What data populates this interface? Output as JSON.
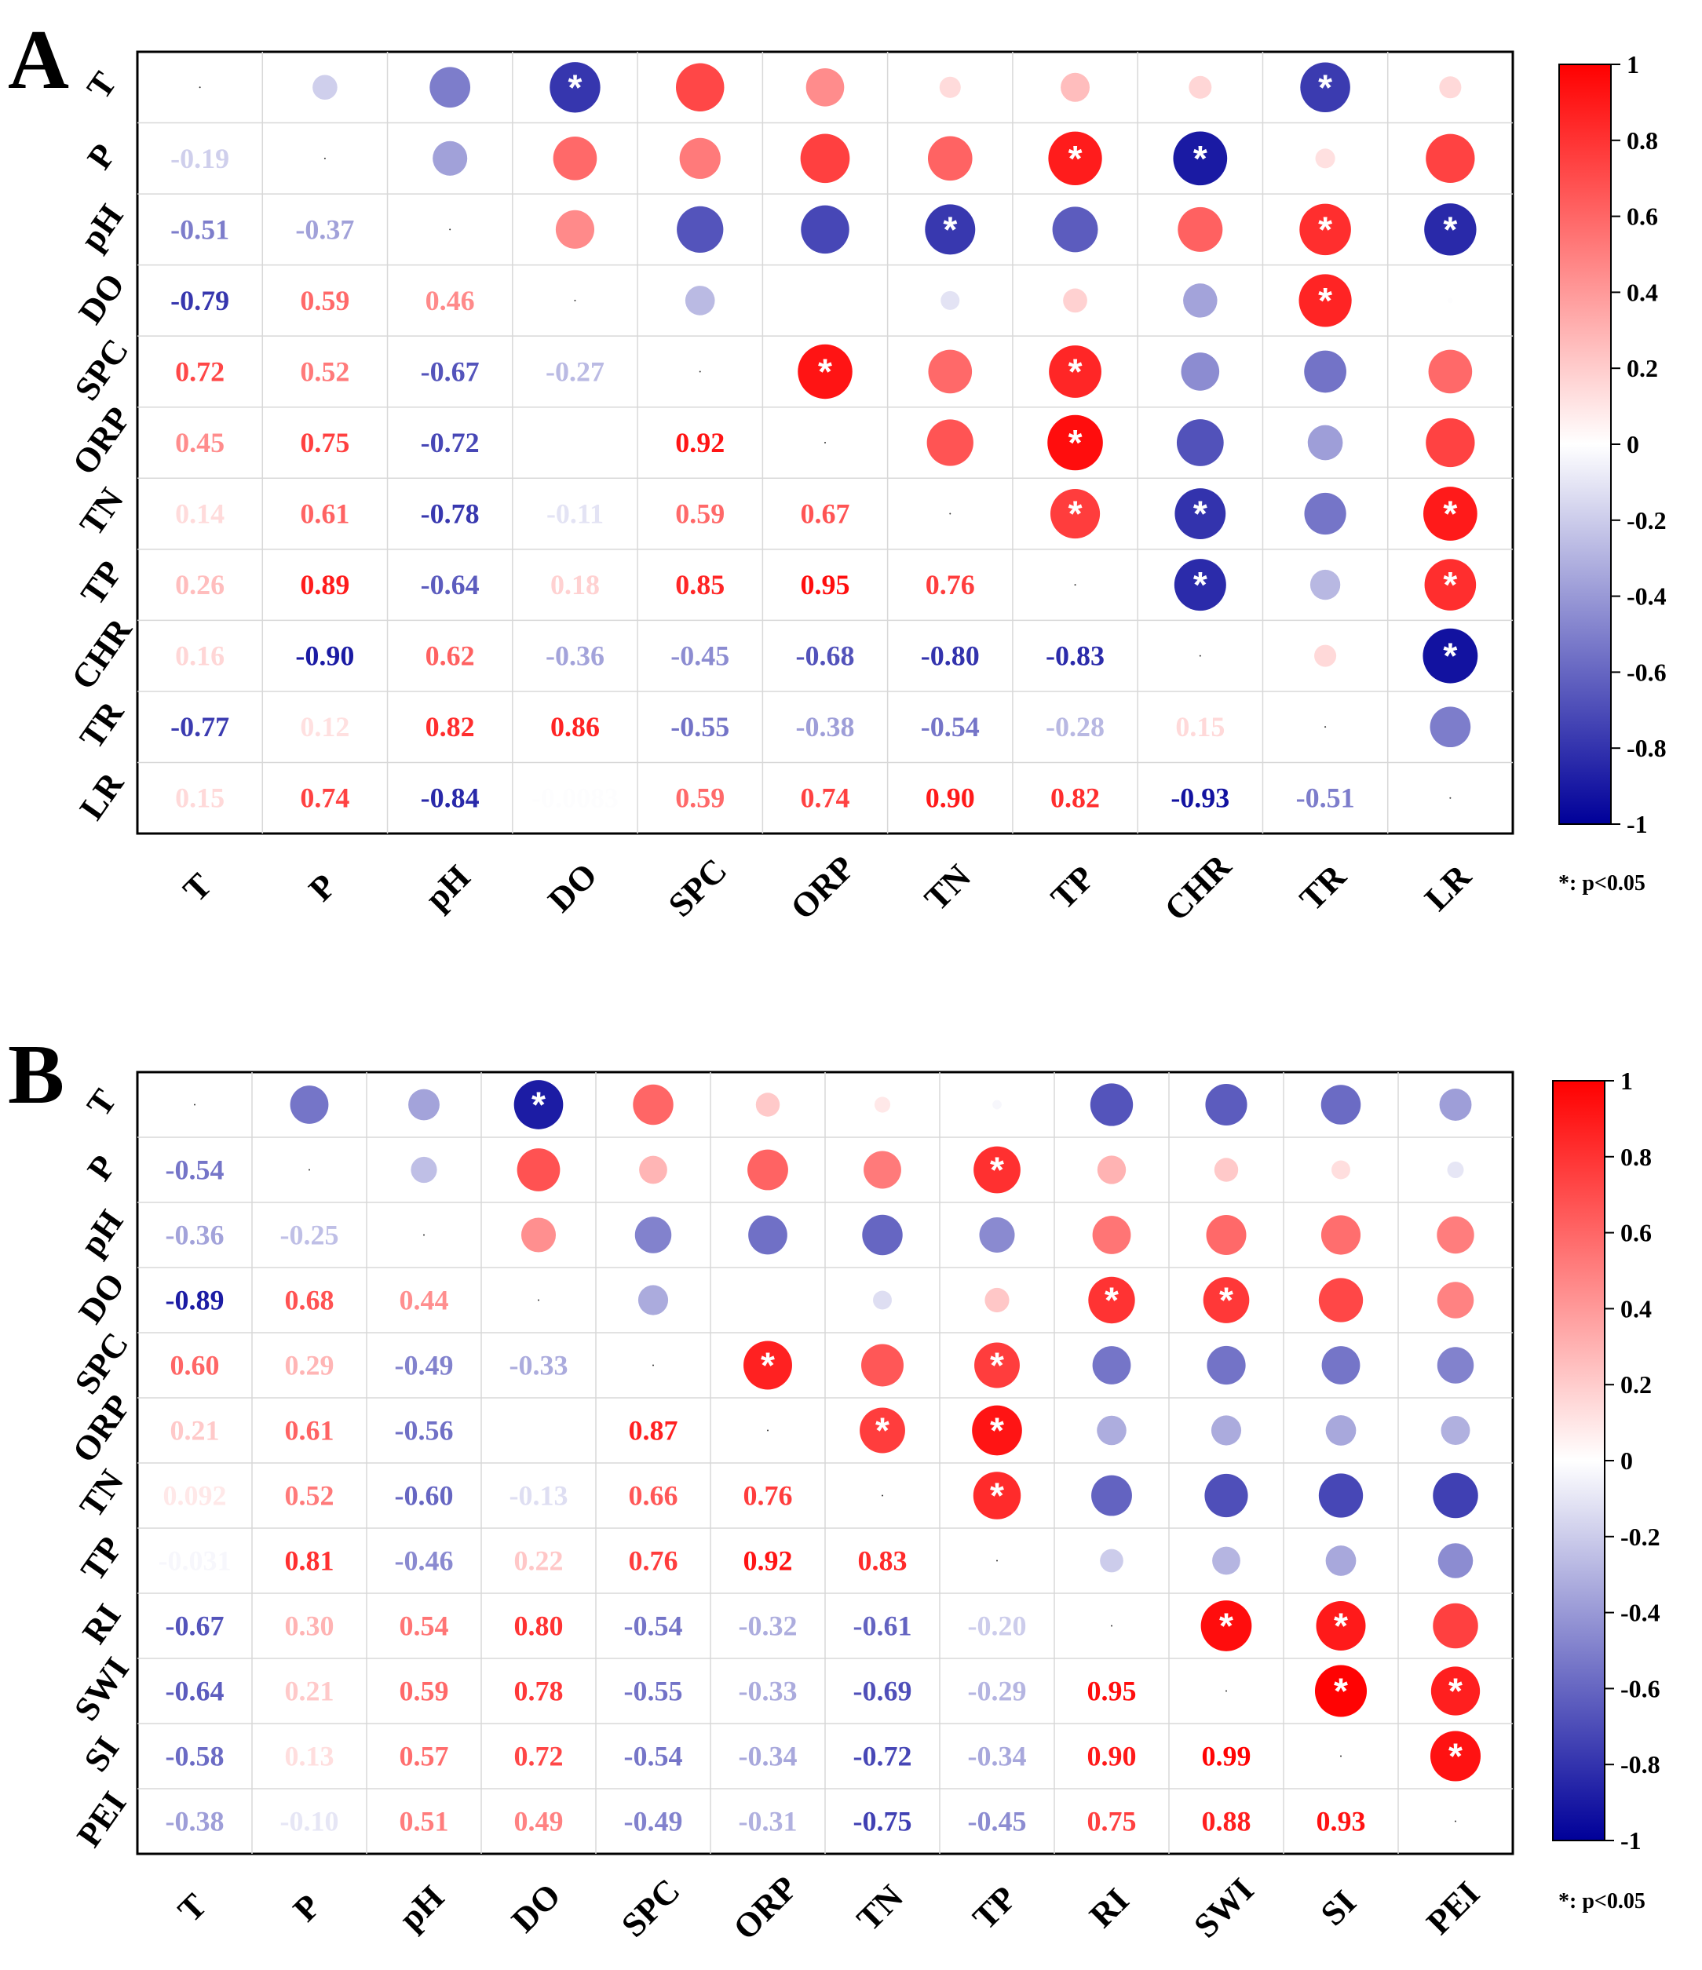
{
  "significance_note": "*:  p<0.05",
  "significance_marker": "*",
  "colorbar": {
    "ticks": [
      "1",
      "0.8",
      "0.6",
      "0.4",
      "0.2",
      "0",
      "-0.2",
      "-0.4",
      "-0.6",
      "-0.8",
      "-1"
    ],
    "colors": {
      "positive": "#ff0000",
      "neutral": "#ffffff",
      "negative": "#000099"
    }
  },
  "chart_data": [
    {
      "panel": "A",
      "type": "heatmap",
      "title": "A",
      "range": [
        -1,
        1
      ],
      "variables": [
        "T",
        "P",
        "pH",
        "DO",
        "SPC",
        "ORP",
        "TN",
        "TP",
        "CHR",
        "TR",
        "LR"
      ],
      "lower_triangle_labels": [
        [],
        [
          "-0.19"
        ],
        [
          "-0.51",
          "-0.37"
        ],
        [
          "-0.79",
          "0.59",
          "0.46"
        ],
        [
          "0.72",
          "0.52",
          "-0.67",
          "-0.27"
        ],
        [
          "0.45",
          "0.75",
          "-0.72",
          "",
          "0.92"
        ],
        [
          "0.14",
          "0.61",
          "-0.78",
          "-0.11",
          "0.59",
          "0.67"
        ],
        [
          "0.26",
          "0.89",
          "-0.64",
          "0.18",
          "0.85",
          "0.95",
          "0.76"
        ],
        [
          "0.16",
          "-0.90",
          "0.62",
          "-0.36",
          "-0.45",
          "-0.68",
          "-0.80",
          "-0.83"
        ],
        [
          "-0.77",
          "0.12",
          "0.82",
          "0.86",
          "-0.55",
          "-0.38",
          "-0.54",
          "-0.28",
          "0.15"
        ],
        [
          "0.15",
          "0.74",
          "-0.84",
          "-0.0083",
          "0.59",
          "0.74",
          "0.90",
          "0.82",
          "-0.93",
          "-0.51"
        ]
      ],
      "upper_triangle_values": [
        [
          null,
          -0.19,
          -0.51,
          -0.79,
          0.72,
          0.45,
          0.14,
          0.26,
          0.16,
          -0.77,
          0.15
        ],
        [
          null,
          null,
          -0.37,
          0.59,
          0.52,
          0.75,
          0.61,
          0.89,
          -0.9,
          0.12,
          0.74
        ],
        [
          null,
          null,
          null,
          0.46,
          -0.67,
          -0.72,
          -0.78,
          -0.64,
          0.62,
          0.82,
          -0.84
        ],
        [
          null,
          null,
          null,
          null,
          -0.27,
          0.0,
          -0.11,
          0.18,
          -0.36,
          0.86,
          -0.0083
        ],
        [
          null,
          null,
          null,
          null,
          null,
          0.92,
          0.59,
          0.85,
          -0.45,
          -0.55,
          0.59
        ],
        [
          null,
          null,
          null,
          null,
          null,
          null,
          0.67,
          0.95,
          -0.68,
          -0.38,
          0.74
        ],
        [
          null,
          null,
          null,
          null,
          null,
          null,
          null,
          0.76,
          -0.8,
          -0.54,
          0.9
        ],
        [
          null,
          null,
          null,
          null,
          null,
          null,
          null,
          null,
          -0.83,
          -0.28,
          0.82
        ],
        [
          null,
          null,
          null,
          null,
          null,
          null,
          null,
          null,
          null,
          0.15,
          -0.93
        ],
        [
          null,
          null,
          null,
          null,
          null,
          null,
          null,
          null,
          null,
          null,
          -0.51
        ],
        [
          null,
          null,
          null,
          null,
          null,
          null,
          null,
          null,
          null,
          null,
          null
        ]
      ],
      "significant_cells": [
        [
          0,
          3
        ],
        [
          0,
          9
        ],
        [
          1,
          7
        ],
        [
          1,
          8
        ],
        [
          2,
          6
        ],
        [
          2,
          9
        ],
        [
          2,
          10
        ],
        [
          3,
          9
        ],
        [
          4,
          5
        ],
        [
          4,
          7
        ],
        [
          5,
          7
        ],
        [
          6,
          7
        ],
        [
          6,
          8
        ],
        [
          6,
          10
        ],
        [
          7,
          8
        ],
        [
          7,
          10
        ],
        [
          8,
          10
        ]
      ]
    },
    {
      "panel": "B",
      "type": "heatmap",
      "title": "B",
      "range": [
        -1,
        1
      ],
      "variables": [
        "T",
        "P",
        "pH",
        "DO",
        "SPC",
        "ORP",
        "TN",
        "TP",
        "RI",
        "SWI",
        "SI",
        "PEI"
      ],
      "lower_triangle_labels": [
        [],
        [
          "-0.54"
        ],
        [
          "-0.36",
          "-0.25"
        ],
        [
          "-0.89",
          "0.68",
          "0.44"
        ],
        [
          "0.60",
          "0.29",
          "-0.49",
          "-0.33"
        ],
        [
          "0.21",
          "0.61",
          "-0.56",
          "",
          "0.87"
        ],
        [
          "0.092",
          "0.52",
          "-0.60",
          "-0.13",
          "0.66",
          "0.76"
        ],
        [
          "-0.031",
          "0.81",
          "-0.46",
          "0.22",
          "0.76",
          "0.92",
          "0.83"
        ],
        [
          "-0.67",
          "0.30",
          "0.54",
          "0.80",
          "-0.54",
          "-0.32",
          "-0.61",
          "-0.20"
        ],
        [
          "-0.64",
          "0.21",
          "0.59",
          "0.78",
          "-0.55",
          "-0.33",
          "-0.69",
          "-0.29",
          "0.95"
        ],
        [
          "-0.58",
          "0.13",
          "0.57",
          "0.72",
          "-0.54",
          "-0.34",
          "-0.72",
          "-0.34",
          "0.90",
          "0.99"
        ],
        [
          "-0.38",
          "-0.10",
          "0.51",
          "0.49",
          "-0.49",
          "-0.31",
          "-0.75",
          "-0.45",
          "0.75",
          "0.88",
          "0.93"
        ]
      ],
      "upper_triangle_values": [
        [
          null,
          -0.54,
          -0.36,
          -0.89,
          0.6,
          0.21,
          0.092,
          -0.031,
          -0.67,
          -0.64,
          -0.58,
          -0.38
        ],
        [
          null,
          null,
          -0.25,
          0.68,
          0.29,
          0.61,
          0.52,
          0.81,
          0.3,
          0.21,
          0.13,
          -0.1
        ],
        [
          null,
          null,
          null,
          0.44,
          -0.49,
          -0.56,
          -0.6,
          -0.46,
          0.54,
          0.59,
          0.57,
          0.51
        ],
        [
          null,
          null,
          null,
          null,
          -0.33,
          0.0,
          -0.13,
          0.22,
          0.8,
          0.78,
          0.72,
          0.49
        ],
        [
          null,
          null,
          null,
          null,
          null,
          0.87,
          0.66,
          0.76,
          -0.54,
          -0.55,
          -0.54,
          -0.49
        ],
        [
          null,
          null,
          null,
          null,
          null,
          null,
          0.76,
          0.92,
          -0.32,
          -0.33,
          -0.34,
          -0.31
        ],
        [
          null,
          null,
          null,
          null,
          null,
          null,
          null,
          0.83,
          -0.61,
          -0.69,
          -0.72,
          -0.75
        ],
        [
          null,
          null,
          null,
          null,
          null,
          null,
          null,
          null,
          -0.2,
          -0.29,
          -0.34,
          -0.45
        ],
        [
          null,
          null,
          null,
          null,
          null,
          null,
          null,
          null,
          null,
          0.95,
          0.9,
          0.75
        ],
        [
          null,
          null,
          null,
          null,
          null,
          null,
          null,
          null,
          null,
          null,
          0.99,
          0.88
        ],
        [
          null,
          null,
          null,
          null,
          null,
          null,
          null,
          null,
          null,
          null,
          null,
          0.93
        ],
        [
          null,
          null,
          null,
          null,
          null,
          null,
          null,
          null,
          null,
          null,
          null,
          null
        ]
      ],
      "significant_cells": [
        [
          0,
          3
        ],
        [
          1,
          7
        ],
        [
          3,
          8
        ],
        [
          3,
          9
        ],
        [
          4,
          5
        ],
        [
          4,
          7
        ],
        [
          5,
          6
        ],
        [
          5,
          7
        ],
        [
          6,
          7
        ],
        [
          8,
          9
        ],
        [
          8,
          10
        ],
        [
          9,
          10
        ],
        [
          9,
          11
        ],
        [
          10,
          11
        ]
      ]
    }
  ]
}
